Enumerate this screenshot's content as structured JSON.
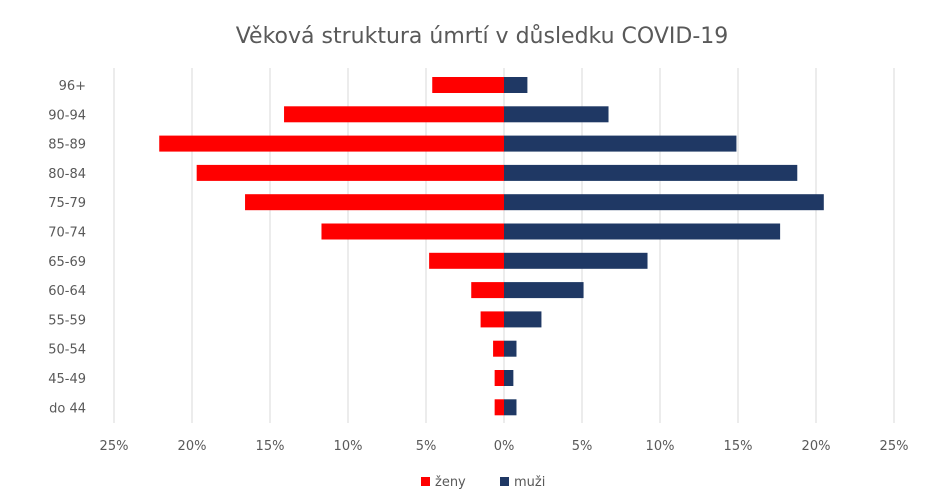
{
  "chart_data": {
    "type": "bar",
    "orientation": "horizontal",
    "layout": "population-pyramid",
    "title": "Věková struktura úmrtí v důsledku COVID-19",
    "categories": [
      "96+",
      "90-94",
      "85-89",
      "80-84",
      "75-79",
      "70-74",
      "65-69",
      "60-64",
      "55-59",
      "50-54",
      "45-49",
      "do 44"
    ],
    "series": [
      {
        "name": "ženy",
        "side": "left",
        "color": "#ff0000",
        "values": [
          4.6,
          14.1,
          22.1,
          19.7,
          16.6,
          11.7,
          4.8,
          2.1,
          1.5,
          0.7,
          0.6,
          0.6
        ]
      },
      {
        "name": "muži",
        "side": "right",
        "color": "#1f3864",
        "values": [
          1.5,
          6.7,
          14.9,
          18.8,
          20.5,
          17.7,
          9.2,
          5.1,
          2.4,
          0.8,
          0.6,
          0.8
        ]
      }
    ],
    "xlim": [
      -25,
      25
    ],
    "x_ticks": [
      -25,
      -20,
      -15,
      -10,
      -5,
      0,
      5,
      10,
      15,
      20,
      25
    ],
    "x_tick_labels": [
      "25%",
      "20%",
      "15%",
      "10%",
      "5%",
      "0%",
      "5%",
      "10%",
      "15%",
      "20%",
      "25%"
    ],
    "grid": "vertical",
    "legend_position": "bottom"
  }
}
